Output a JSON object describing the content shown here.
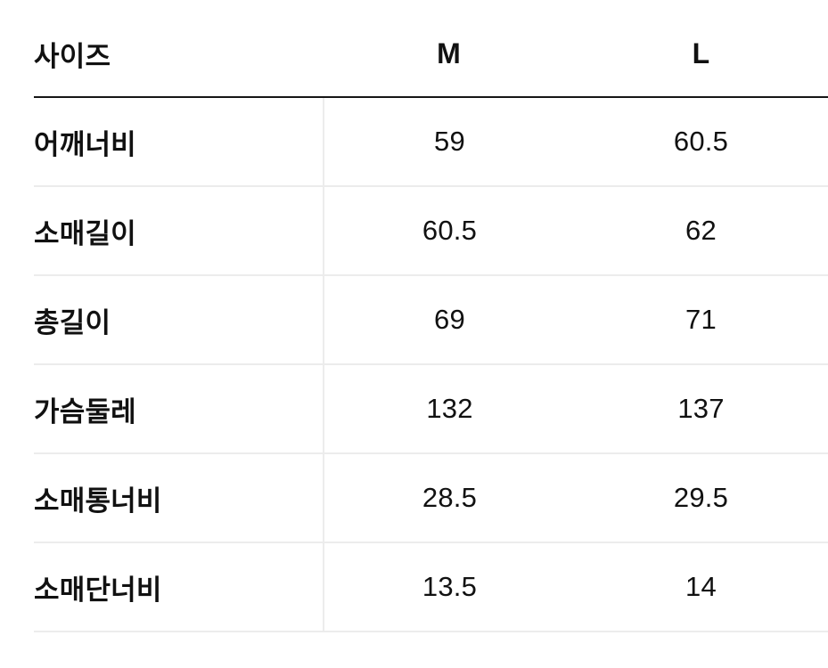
{
  "table": {
    "header": {
      "label": "사이즈",
      "col_m": "M",
      "col_l": "L"
    },
    "rows": [
      {
        "label": "어깨너비",
        "m": "59",
        "l": "60.5"
      },
      {
        "label": "소매길이",
        "m": "60.5",
        "l": "62"
      },
      {
        "label": "총길이",
        "m": "69",
        "l": "71"
      },
      {
        "label": "가슴둘레",
        "m": "132",
        "l": "137"
      },
      {
        "label": "소매통너비",
        "m": "28.5",
        "l": "29.5"
      },
      {
        "label": "소매단너비",
        "m": "13.5",
        "l": "14"
      }
    ],
    "colors": {
      "header_border": "#161616",
      "row_border": "#ececec",
      "text": "#111111",
      "background": "#ffffff"
    }
  }
}
